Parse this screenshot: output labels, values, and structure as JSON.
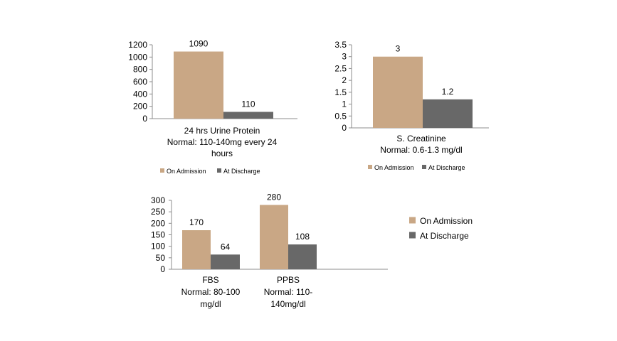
{
  "chart_data": [
    {
      "type": "bar",
      "categories": [
        "24 hrs Urine Protein\nNormal: 110-140mg every 24\nhours"
      ],
      "series": [
        {
          "name": "On Admission",
          "values": [
            1090
          ]
        },
        {
          "name": "At Discharge",
          "values": [
            110
          ]
        }
      ],
      "ylim": [
        0,
        1200
      ],
      "yticks": [
        0,
        200,
        400,
        600,
        800,
        1000,
        1200
      ],
      "grid": false,
      "legend": "bottom"
    },
    {
      "type": "bar",
      "categories": [
        "S. Creatinine\nNormal: 0.6-1.3 mg/dl"
      ],
      "series": [
        {
          "name": "On Admission",
          "values": [
            3
          ]
        },
        {
          "name": "At Discharge",
          "values": [
            1.2
          ]
        }
      ],
      "ylim": [
        0,
        3.5
      ],
      "yticks": [
        0,
        0.5,
        1,
        1.5,
        2,
        2.5,
        3,
        3.5
      ],
      "grid": false,
      "legend": "bottom"
    },
    {
      "type": "bar",
      "categories": [
        "FBS\nNormal: 80-100\nmg/dl",
        "PPBS\nNormal: 110-\n140mg/dl"
      ],
      "series": [
        {
          "name": "On Admission",
          "values": [
            170,
            280
          ]
        },
        {
          "name": "At Discharge",
          "values": [
            64,
            108
          ]
        }
      ],
      "ylim": [
        0,
        300
      ],
      "yticks": [
        0,
        50,
        100,
        150,
        200,
        250,
        300
      ],
      "grid": false,
      "legend": "right"
    }
  ],
  "colors": {
    "On Admission": "#c9a785",
    "At Discharge": "#686868",
    "axis": "#8c8c8c"
  }
}
